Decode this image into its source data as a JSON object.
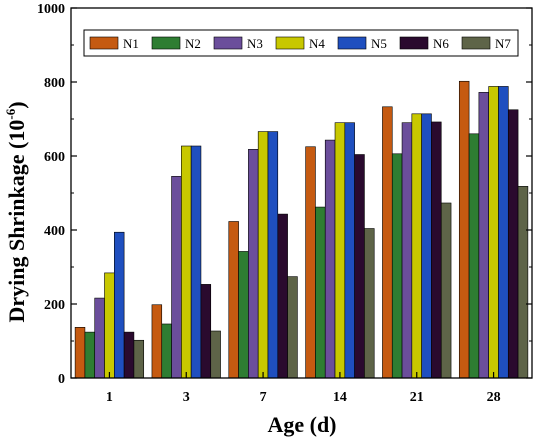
{
  "chart_data": {
    "type": "bar",
    "xlabel": "Age (d)",
    "ylabel": "Drying Shrinkage (10",
    "ylabel_sup": "-6",
    "ylabel_tail": ")",
    "categories": [
      "1",
      "3",
      "7",
      "14",
      "21",
      "28"
    ],
    "ylim": [
      0,
      1000
    ],
    "yticks": [
      "0",
      "200",
      "400",
      "600",
      "800",
      "1000"
    ],
    "legend_position": "top",
    "series": [
      {
        "name": "N1",
        "color": "#C55A11",
        "values": [
          137,
          198,
          423,
          625,
          733,
          802
        ]
      },
      {
        "name": "N2",
        "color": "#2E7D32",
        "values": [
          124,
          146,
          342,
          462,
          606,
          660
        ]
      },
      {
        "name": "N3",
        "color": "#6B4E9B",
        "values": [
          216,
          545,
          618,
          643,
          690,
          772
        ]
      },
      {
        "name": "N4",
        "color": "#C8C800",
        "values": [
          284,
          627,
          666,
          690,
          714,
          788
        ]
      },
      {
        "name": "N5",
        "color": "#1F4FBF",
        "values": [
          394,
          627,
          666,
          690,
          714,
          788
        ]
      },
      {
        "name": "N6",
        "color": "#2A0A2E",
        "values": [
          124,
          253,
          443,
          604,
          692,
          725
        ]
      },
      {
        "name": "N7",
        "color": "#5E6448",
        "values": [
          102,
          127,
          274,
          404,
          473,
          518
        ]
      }
    ]
  }
}
